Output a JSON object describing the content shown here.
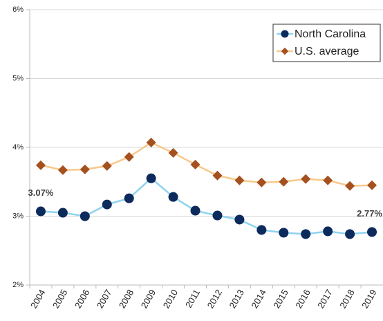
{
  "chart_data": {
    "type": "line",
    "categories": [
      "2004",
      "2005",
      "2006",
      "2007",
      "2008",
      "2009",
      "2010",
      "2011",
      "2012",
      "2013",
      "2014",
      "2015",
      "2016",
      "2017",
      "2018",
      "2019"
    ],
    "series": [
      {
        "name": "North Carolina",
        "color": "#0d2a5c",
        "line_color": "#8fd3f0",
        "marker": "circle",
        "values": [
          3.07,
          3.05,
          3.0,
          3.17,
          3.26,
          3.55,
          3.28,
          3.08,
          3.01,
          2.95,
          2.8,
          2.76,
          2.74,
          2.78,
          2.74,
          2.77
        ],
        "value_labels": [
          "3.07%",
          null,
          null,
          null,
          null,
          null,
          null,
          null,
          null,
          null,
          null,
          null,
          null,
          null,
          null,
          "2.77%"
        ]
      },
      {
        "name": "U.S. average",
        "color": "#a5501f",
        "line_color": "#f7c98a",
        "marker": "diamond",
        "values": [
          3.74,
          3.67,
          3.68,
          3.73,
          3.86,
          4.07,
          3.92,
          3.75,
          3.59,
          3.52,
          3.49,
          3.5,
          3.54,
          3.52,
          3.44,
          3.45
        ]
      }
    ],
    "ylim": [
      2,
      6
    ],
    "yticks": [
      {
        "value": 2,
        "label": "2%"
      },
      {
        "value": 3,
        "label": "3%"
      },
      {
        "value": 4,
        "label": "4%"
      },
      {
        "value": 5,
        "label": "5%"
      },
      {
        "value": 6,
        "label": "6%"
      }
    ],
    "grid": true,
    "legend": "top-right"
  }
}
